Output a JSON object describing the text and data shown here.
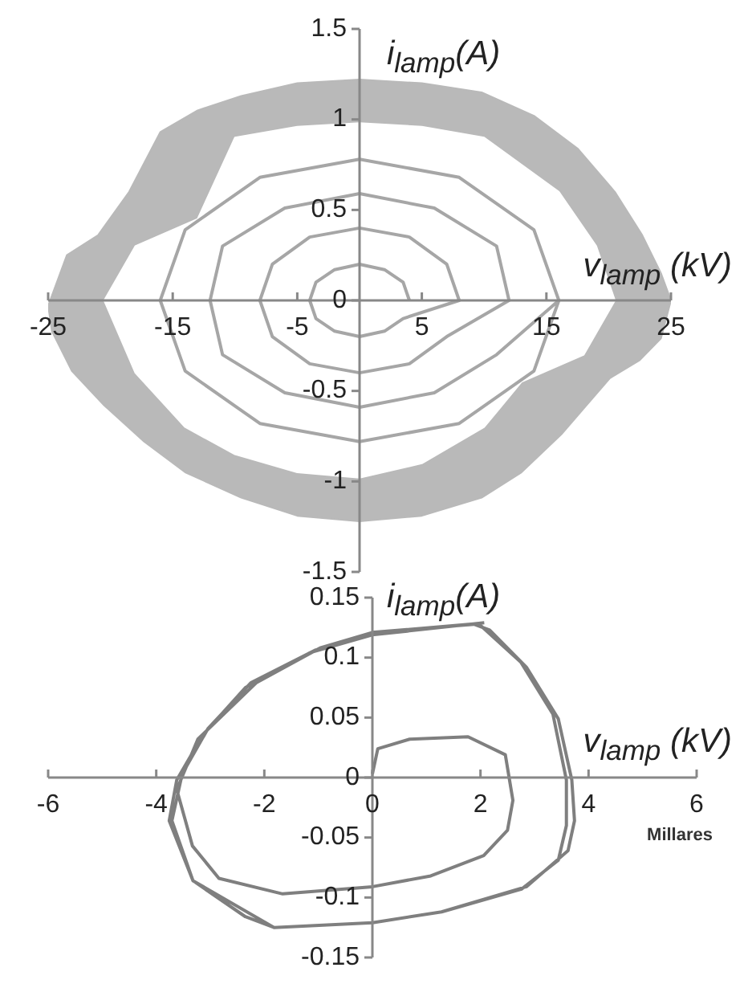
{
  "chart_data": [
    {
      "type": "line",
      "xlabel": "v$_{lamp}$ (kV)",
      "ylabel": "i$_{lamp}$(A)",
      "xlim": [
        -25,
        25
      ],
      "xticks": [
        -25,
        -15,
        -5,
        5,
        15,
        25
      ],
      "ylim": [
        -1.5,
        1.5
      ],
      "yticks": [
        -1.5,
        -1,
        -0.5,
        0,
        0.5,
        1,
        1.5
      ],
      "grid": false,
      "legend": false,
      "marker": "none",
      "series": [
        {
          "type": "area",
          "color": "#b9b9b9",
          "x": [
            -25,
            -23.5,
            -21,
            -18.5,
            -16,
            -13,
            -9.5,
            -5,
            0,
            5,
            9.8,
            14,
            17.5,
            20.5,
            22.7,
            24.2,
            25,
            24.2,
            22.5,
            20.1,
            16.2,
            13,
            9.8,
            5,
            0,
            -5,
            -9.5,
            -14,
            -17.3,
            -20.5,
            -23.1,
            -24.7,
            -25
          ],
          "values": [
            -0.03,
            0.25,
            0.36,
            0.6,
            0.93,
            1.05,
            1.13,
            1.2,
            1.22,
            1.2,
            1.15,
            1.02,
            0.84,
            0.6,
            0.36,
            0.15,
            0,
            -0.21,
            -0.33,
            -0.43,
            -0.74,
            -0.95,
            -1.09,
            -1.19,
            -1.22,
            -1.19,
            -1.09,
            -0.95,
            -0.78,
            -0.58,
            -0.39,
            -0.17,
            -0.03
          ]
        },
        {
          "type": "area",
          "color": "#ffffff",
          "x": [
            20.5,
            19,
            16,
            10,
            5,
            0,
            -5,
            -10,
            -13,
            -18,
            -20.5,
            -18,
            -14,
            -10,
            -5,
            0,
            5,
            10,
            13,
            18,
            20.5
          ],
          "values": [
            0,
            0.3,
            0.6,
            0.9,
            0.96,
            0.98,
            0.96,
            0.9,
            0.45,
            0.3,
            0,
            -0.4,
            -0.7,
            -0.85,
            -0.95,
            -0.98,
            -0.9,
            -0.7,
            -0.45,
            -0.3,
            0
          ]
        },
        {
          "color": "#a6a6a6",
          "x": [
            4,
            3.5,
            2,
            0,
            -2,
            -3.5,
            -4,
            -3.5,
            -2,
            0,
            2,
            3.5,
            8,
            7,
            4,
            0,
            -4,
            -7,
            -8,
            -7,
            -4,
            0,
            4,
            7,
            12,
            11,
            6,
            0,
            -6,
            -11,
            -12,
            -11,
            -6,
            0,
            6,
            11,
            16,
            14,
            8,
            0,
            -8,
            -14,
            -16,
            -14,
            -8,
            0,
            8,
            14,
            16
          ],
          "values": [
            0,
            0.1,
            0.17,
            0.2,
            0.17,
            0.1,
            0,
            -0.1,
            -0.17,
            -0.2,
            -0.17,
            -0.1,
            0,
            0.2,
            0.35,
            0.4,
            0.35,
            0.2,
            0,
            -0.2,
            -0.35,
            -0.4,
            -0.35,
            -0.2,
            0,
            0.3,
            0.51,
            0.59,
            0.51,
            0.3,
            0,
            -0.3,
            -0.51,
            -0.59,
            -0.51,
            -0.3,
            0,
            0.39,
            0.68,
            0.78,
            0.68,
            0.39,
            0,
            -0.39,
            -0.68,
            -0.78,
            -0.68,
            -0.39,
            0
          ]
        }
      ]
    },
    {
      "type": "line",
      "xlabel": "v$_{lamp}$ (kV)",
      "ylabel": "i$_{lamp}$(A)",
      "xlim": [
        -6,
        6
      ],
      "xticks": [
        -6,
        -4,
        -2,
        0,
        2,
        4,
        6
      ],
      "ylim": [
        -0.15,
        0.15
      ],
      "yticks": [
        -0.15,
        -0.1,
        -0.05,
        0,
        0.05,
        0.1,
        0.15
      ],
      "grid": false,
      "legend": false,
      "marker": "none",
      "annotations": [
        "Millares"
      ],
      "series": [
        {
          "color": "#7f7f7f",
          "x": [
            0,
            0.1,
            0.69,
            1.77,
            2.46,
            2.6,
            2.5,
            2.06,
            1.08,
            0,
            -1.66,
            -2.84,
            -3.33,
            -3.62,
            -3.23,
            -2.15,
            -0.97,
            0,
            1.97,
            2.75,
            3.34,
            3.59,
            3.59,
            3.44,
            2.76,
            1.28,
            0,
            -1.82,
            -3.32,
            -3.71,
            -3.52,
            -3.04,
            -2.25,
            -1.07,
            0,
            1.87,
            2.17,
            2.85,
            3.44,
            3.69,
            3.74,
            3.62,
            2.85,
            1.28,
            0,
            -1.82,
            -2.35,
            -3.32,
            -3.76,
            -3.62,
            -3.13,
            -2.35,
            -1.16,
            0,
            2.07
          ],
          "values": [
            0.003,
            0.024,
            0.032,
            0.034,
            0.019,
            -0.019,
            -0.044,
            -0.065,
            -0.082,
            -0.091,
            -0.097,
            -0.084,
            -0.057,
            -0.01,
            0.032,
            0.079,
            0.108,
            0.121,
            0.128,
            0.096,
            0.053,
            -0.002,
            -0.04,
            -0.069,
            -0.093,
            -0.112,
            -0.121,
            -0.125,
            -0.086,
            -0.036,
            0.003,
            0.041,
            0.079,
            0.106,
            0.121,
            0.128,
            0.123,
            0.092,
            0.049,
            -0.002,
            -0.036,
            -0.061,
            -0.091,
            -0.112,
            -0.121,
            -0.125,
            -0.116,
            -0.086,
            -0.036,
            -0.002,
            0.036,
            0.075,
            0.104,
            0.119,
            0.129
          ]
        }
      ]
    }
  ]
}
